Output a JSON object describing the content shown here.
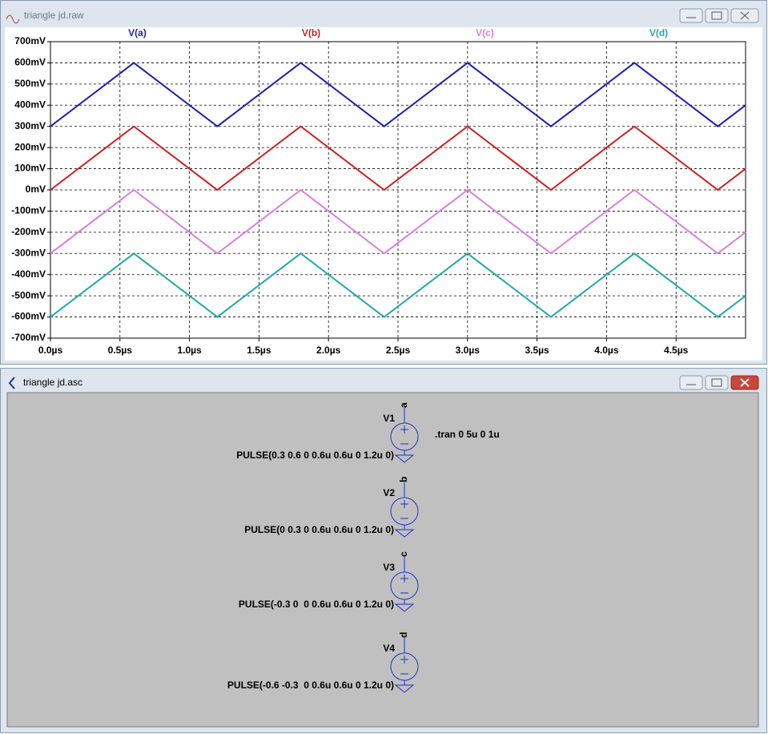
{
  "waveform_window": {
    "title": "triangle jd.raw"
  },
  "chart_data": {
    "type": "line",
    "x": [
      0,
      0.6,
      1.2,
      1.8,
      2.4,
      3.0,
      3.6,
      4.2,
      4.8,
      5.0
    ],
    "series": [
      {
        "name": "V(a)",
        "color": "#1f1fb0",
        "values": [
          300,
          600,
          300,
          600,
          300,
          600,
          300,
          600,
          300,
          400
        ]
      },
      {
        "name": "V(b)",
        "color": "#cc1f1f",
        "values": [
          0,
          300,
          0,
          300,
          0,
          300,
          0,
          300,
          0,
          100
        ]
      },
      {
        "name": "V(c)",
        "color": "#d77fe0",
        "values": [
          -300,
          0,
          -300,
          0,
          -300,
          0,
          -300,
          0,
          -300,
          -200
        ]
      },
      {
        "name": "V(d)",
        "color": "#21a9a9",
        "values": [
          -600,
          -300,
          -600,
          -300,
          -600,
          -300,
          -600,
          -300,
          -600,
          -500
        ]
      }
    ],
    "xlim": [
      0,
      5
    ],
    "xticks": [
      {
        "value": 0,
        "label": "0.0µs"
      },
      {
        "value": 0.5,
        "label": "0.5µs"
      },
      {
        "value": 1,
        "label": "1.0µs"
      },
      {
        "value": 1.5,
        "label": "1.5µs"
      },
      {
        "value": 2,
        "label": "2.0µs"
      },
      {
        "value": 2.5,
        "label": "2.5µs"
      },
      {
        "value": 3,
        "label": "3.0µs"
      },
      {
        "value": 3.5,
        "label": "3.5µs"
      },
      {
        "value": 4,
        "label": "4.0µs"
      },
      {
        "value": 4.5,
        "label": "4.5µs"
      }
    ],
    "ylim": [
      -700,
      700
    ],
    "yticks": [
      {
        "value": 700,
        "label": "700mV"
      },
      {
        "value": 600,
        "label": "600mV"
      },
      {
        "value": 500,
        "label": "500mV"
      },
      {
        "value": 400,
        "label": "400mV"
      },
      {
        "value": 300,
        "label": "300mV"
      },
      {
        "value": 200,
        "label": "200mV"
      },
      {
        "value": 100,
        "label": "100mV"
      },
      {
        "value": 0,
        "label": "0mV"
      },
      {
        "value": -100,
        "label": "-100mV"
      },
      {
        "value": -200,
        "label": "-200mV"
      },
      {
        "value": -300,
        "label": "-300mV"
      },
      {
        "value": -400,
        "label": "-400mV"
      },
      {
        "value": -500,
        "label": "-500mV"
      },
      {
        "value": -600,
        "label": "-600mV"
      },
      {
        "value": -700,
        "label": "-700mV"
      }
    ],
    "grid": true
  },
  "schematic_window": {
    "title": "triangle jd.asc",
    "directive": ".tran 0 5u 0 1u",
    "components": [
      {
        "name": "V1",
        "node": "a",
        "value": "PULSE(0.3 0.6 0 0.6u 0.6u 0 1.2u 0)"
      },
      {
        "name": "V2",
        "node": "b",
        "value": "PULSE(0 0.3 0 0.6u 0.6u 0 1.2u 0)"
      },
      {
        "name": "V3",
        "node": "c",
        "value": "PULSE(-0.3 0  0 0.6u 0.6u 0 1.2u 0)"
      },
      {
        "name": "V4",
        "node": "d",
        "value": "PULSE(-0.6 -0.3  0 0.6u 0.6u 0 1.2u 0)"
      }
    ]
  }
}
